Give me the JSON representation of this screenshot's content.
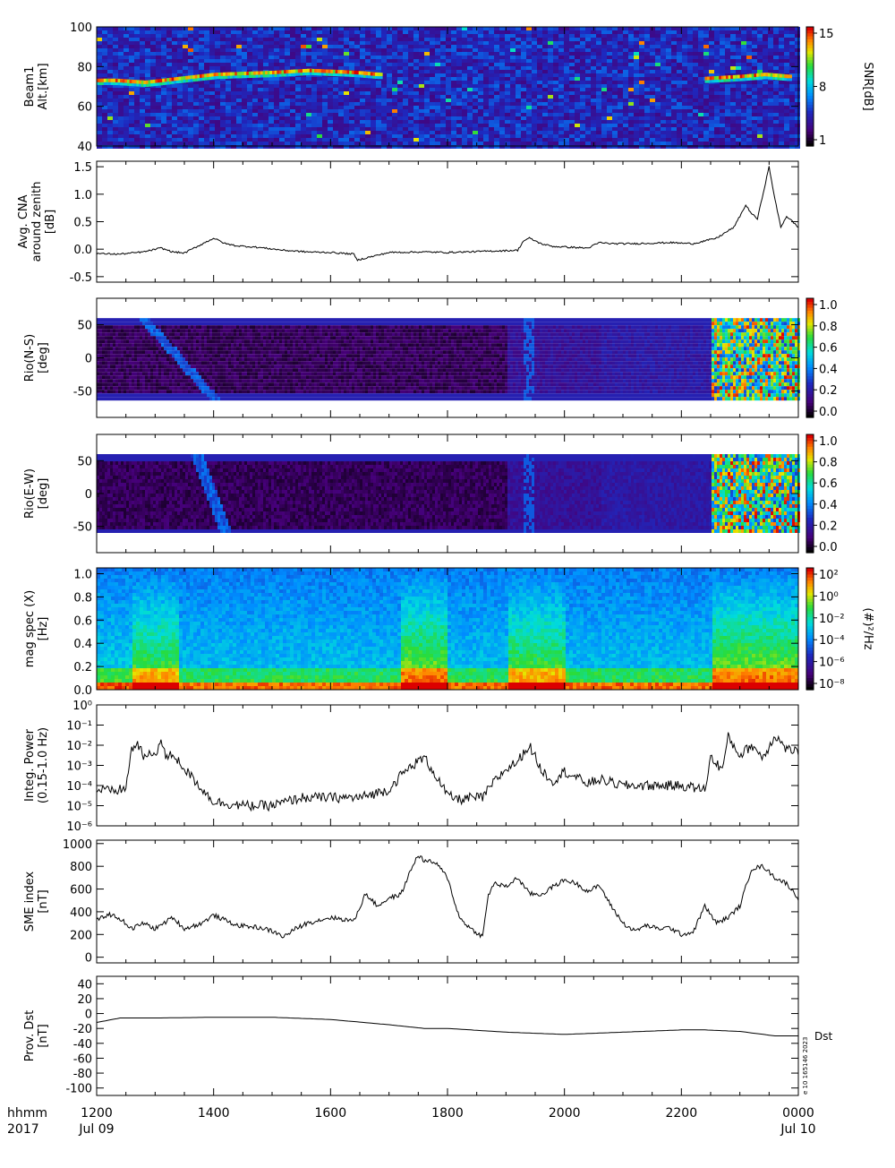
{
  "figure": {
    "footer": {
      "row1": [
        "hhmm",
        "1200",
        "1400",
        "1600",
        "1800",
        "2000",
        "2200",
        "0000"
      ],
      "row2": [
        "2017",
        "Jul 09",
        "Jul 10"
      ]
    },
    "stamp": "e 10 165146 2023"
  },
  "chart_data": [
    {
      "id": "beam1",
      "type": "heatmap",
      "ylabel": [
        "Beam1",
        "Alt.[km]"
      ],
      "ylim": [
        40,
        100
      ],
      "yticks": [
        "40",
        "60",
        "80",
        "100"
      ],
      "colorbar": {
        "label": "SNR[dB]",
        "ticks": [
          "1",
          "8",
          "15"
        ],
        "range": [
          1,
          15
        ]
      },
      "features": [
        {
          "x": [
            1200,
            1230,
            1280,
            1340,
            1400,
            1500,
            1560,
            1640,
            1680
          ],
          "alt": [
            73,
            73,
            72,
            74,
            76,
            77,
            78,
            77,
            76
          ]
        },
        {
          "x": [
            2240,
            2300,
            2340,
            2380
          ],
          "alt": [
            74,
            75,
            76,
            75
          ]
        }
      ]
    },
    {
      "id": "cna",
      "type": "line",
      "ylabel": [
        "Avg. CNA",
        "around zenith",
        "[dB]"
      ],
      "ylim": [
        -0.6,
        1.6
      ],
      "yticks": [
        "-0.5",
        "0.0",
        "0.5",
        "1.0",
        "1.5"
      ],
      "x": [
        1200,
        1240,
        1280,
        1310,
        1330,
        1350,
        1400,
        1420,
        1440,
        1470,
        1520,
        1560,
        1600,
        1640,
        1645,
        1700,
        1760,
        1800,
        1860,
        1920,
        1930,
        1940,
        1960,
        1980,
        2040,
        2060,
        2080,
        2120,
        2180,
        2220,
        2260,
        2290,
        2310,
        2320,
        2330,
        2350,
        2360,
        2370,
        2380,
        2400
      ],
      "y": [
        -0.08,
        -0.09,
        -0.05,
        0.02,
        -0.05,
        -0.07,
        0.2,
        0.1,
        0.06,
        0.04,
        -0.02,
        -0.05,
        -0.06,
        -0.09,
        -0.2,
        -0.06,
        -0.05,
        -0.06,
        -0.04,
        -0.02,
        0.15,
        0.2,
        0.1,
        0.05,
        0.02,
        0.12,
        0.1,
        0.1,
        0.12,
        0.1,
        0.2,
        0.4,
        0.8,
        0.65,
        0.55,
        1.5,
        0.9,
        0.4,
        0.6,
        0.4
      ]
    },
    {
      "id": "rio-ns",
      "type": "heatmap",
      "ylabel": [
        "Rio(N-S)",
        "[deg]"
      ],
      "ylim": [
        -90,
        90
      ],
      "yticks": [
        "-50",
        "0",
        "50"
      ],
      "data_range": [
        -60,
        60
      ],
      "colorbar": {
        "ticks": [
          "0.0",
          "0.2",
          "0.4",
          "0.6",
          "0.8",
          "1.0"
        ],
        "range": [
          0,
          1.1
        ]
      },
      "arc": {
        "x": [
          1280,
          1400
        ],
        "y": [
          60,
          -50
        ]
      }
    },
    {
      "id": "rio-ew",
      "type": "heatmap",
      "ylabel": [
        "Rio(E-W)",
        "[deg]"
      ],
      "ylim": [
        -90,
        90
      ],
      "yticks": [
        "-50",
        "0",
        "50"
      ],
      "data_range": [
        -60,
        60
      ],
      "colorbar": {
        "ticks": [
          "0.0",
          "0.2",
          "0.4",
          "0.6",
          "0.8",
          "1.0"
        ],
        "range": [
          0,
          1.1
        ]
      },
      "arc": {
        "x": [
          1370,
          1420
        ],
        "y": [
          55,
          -50
        ]
      }
    },
    {
      "id": "magspec",
      "type": "heatmap",
      "ylabel": [
        "mag spec (X)",
        "[Hz]"
      ],
      "ylim": [
        0,
        1.05
      ],
      "yticks": [
        "0.0",
        "0.2",
        "0.4",
        "0.6",
        "0.8",
        "1.0"
      ],
      "colorbar": {
        "label": "(#)²/Hz",
        "ticks": [
          "10⁻⁸",
          "10⁻⁶",
          "10⁻⁴",
          "10⁻²",
          "10⁰",
          "10²"
        ],
        "range": [
          -9,
          2
        ]
      }
    },
    {
      "id": "intpower",
      "type": "line",
      "ylabel": [
        "Integ. Power",
        "(0.15-1.0 Hz)"
      ],
      "yscale": "log",
      "ylim": [
        -6,
        0
      ],
      "yticks": [
        "10⁻⁶",
        "10⁻⁵",
        "10⁻⁴",
        "10⁻³",
        "10⁻²",
        "10⁻¹",
        "10⁰"
      ],
      "x": [
        1200,
        1230,
        1250,
        1260,
        1270,
        1280,
        1300,
        1310,
        1320,
        1330,
        1340,
        1360,
        1400,
        1450,
        1500,
        1550,
        1600,
        1650,
        1700,
        1720,
        1740,
        1760,
        1780,
        1800,
        1820,
        1840,
        1860,
        1880,
        1900,
        1920,
        1940,
        1950,
        1960,
        1980,
        2000,
        2020,
        2040,
        2060,
        2100,
        2150,
        2200,
        2240,
        2250,
        2270,
        2280,
        2300,
        2320,
        2340,
        2360,
        2380,
        2400
      ],
      "y": [
        -4.2,
        -4.3,
        -4.1,
        -2.2,
        -1.9,
        -2.6,
        -2.4,
        -1.8,
        -2.7,
        -2.4,
        -2.8,
        -3.5,
        -4.8,
        -5.0,
        -5.0,
        -4.6,
        -4.6,
        -4.6,
        -4.2,
        -3.5,
        -3.0,
        -2.6,
        -3.5,
        -4.5,
        -4.7,
        -4.6,
        -4.6,
        -3.8,
        -3.2,
        -2.8,
        -2.0,
        -2.6,
        -3.2,
        -3.8,
        -3.3,
        -3.6,
        -3.9,
        -3.7,
        -4.0,
        -4.0,
        -4.0,
        -4.2,
        -2.6,
        -3.2,
        -1.6,
        -2.5,
        -2.0,
        -2.6,
        -1.5,
        -2.2,
        -2.3
      ]
    },
    {
      "id": "sme",
      "type": "line",
      "ylabel": [
        "SME index",
        "[nT]"
      ],
      "ylim": [
        -50,
        1030
      ],
      "yticks": [
        "0",
        "200",
        "400",
        "600",
        "800",
        "1000"
      ],
      "x": [
        1200,
        1220,
        1240,
        1260,
        1280,
        1300,
        1330,
        1350,
        1380,
        1400,
        1440,
        1480,
        1500,
        1520,
        1540,
        1560,
        1600,
        1640,
        1660,
        1680,
        1700,
        1720,
        1740,
        1750,
        1760,
        1780,
        1800,
        1820,
        1840,
        1860,
        1870,
        1880,
        1900,
        1920,
        1940,
        1960,
        1980,
        2000,
        2020,
        2040,
        2060,
        2080,
        2100,
        2120,
        2140,
        2160,
        2180,
        2200,
        2220,
        2240,
        2260,
        2280,
        2300,
        2320,
        2340,
        2360,
        2380,
        2400
      ],
      "y": [
        320,
        380,
        340,
        250,
        300,
        250,
        350,
        250,
        300,
        370,
        280,
        260,
        230,
        180,
        250,
        300,
        350,
        320,
        560,
        450,
        520,
        550,
        800,
        900,
        850,
        830,
        700,
        350,
        250,
        180,
        550,
        650,
        620,
        700,
        560,
        550,
        620,
        680,
        650,
        580,
        630,
        450,
        300,
        230,
        280,
        250,
        260,
        200,
        220,
        450,
        300,
        350,
        450,
        780,
        800,
        700,
        650,
        520
      ]
    },
    {
      "id": "dst",
      "type": "line",
      "ylabel": [
        "Prov. Dst",
        "[nT]"
      ],
      "ylim": [
        -110,
        50
      ],
      "yticks": [
        "-100",
        "-80",
        "-60",
        "-40",
        "-20",
        "0",
        "20",
        "40"
      ],
      "legend": "Dst",
      "x": [
        1200,
        1240,
        1300,
        1400,
        1500,
        1600,
        1700,
        1760,
        1800,
        1900,
        2000,
        2100,
        2200,
        2240,
        2300,
        2360,
        2400
      ],
      "y": [
        -12,
        -6,
        -6,
        -5,
        -5,
        -8,
        -15,
        -20,
        -20,
        -25,
        -28,
        -25,
        -22,
        -22,
        -24,
        -30,
        -30
      ]
    }
  ]
}
